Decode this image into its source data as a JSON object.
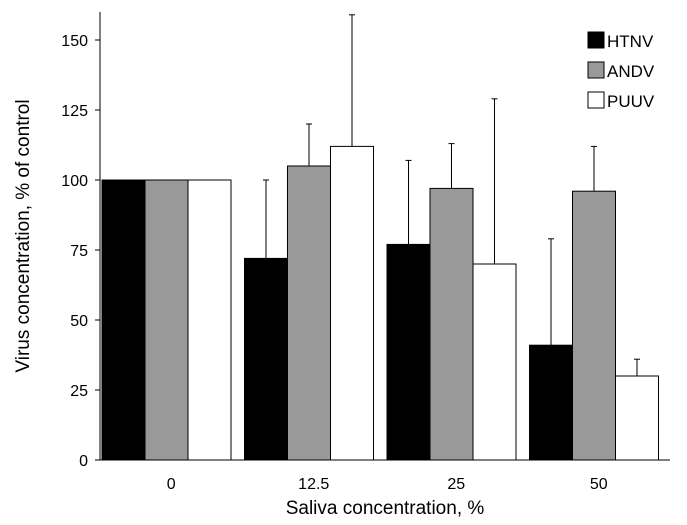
{
  "chart_data": {
    "type": "bar",
    "title": "",
    "xlabel": "Saliva concentration, %",
    "ylabel": "Virus concentration, % of control",
    "categories": [
      "0",
      "12.5",
      "25",
      "50"
    ],
    "ylim": [
      0,
      160
    ],
    "yticks": [
      "0",
      "25",
      "50",
      "75",
      "100",
      "125",
      "150"
    ],
    "grid": false,
    "legend_position": "top-right",
    "series": [
      {
        "name": "HTNV",
        "color": "#000000",
        "values": [
          100,
          72,
          77,
          41
        ],
        "error": [
          0,
          28,
          30,
          38
        ]
      },
      {
        "name": "ANDV",
        "color": "#999999",
        "values": [
          100,
          105,
          97,
          96
        ],
        "error": [
          0,
          15,
          16,
          16
        ]
      },
      {
        "name": "PUUV",
        "color": "#ffffff",
        "values": [
          100,
          112,
          70,
          30
        ],
        "error": [
          0,
          47,
          59,
          6
        ]
      }
    ]
  }
}
